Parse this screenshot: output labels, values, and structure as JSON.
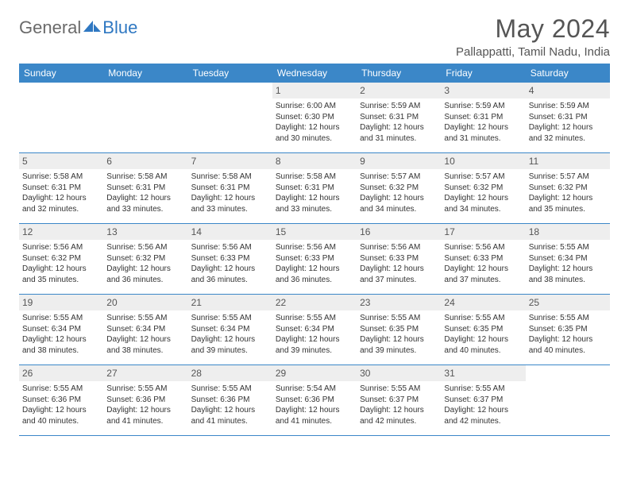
{
  "brand": {
    "part1": "General",
    "part2": "Blue"
  },
  "title": "May 2024",
  "location": "Pallappatti, Tamil Nadu, India",
  "colors": {
    "header_bar": "#3b87c8",
    "daynum_bg": "#eeeeee",
    "text": "#333333",
    "title_text": "#555555",
    "brand_blue": "#2f78c2",
    "brand_gray": "#6a6a6a",
    "row_divider": "#3b87c8",
    "background": "#ffffff"
  },
  "typography": {
    "title_fontsize": 32,
    "location_fontsize": 15,
    "weekday_fontsize": 12,
    "daynum_fontsize": 12,
    "body_fontsize": 10
  },
  "weekdays": [
    "Sunday",
    "Monday",
    "Tuesday",
    "Wednesday",
    "Thursday",
    "Friday",
    "Saturday"
  ],
  "weeks": [
    [
      {
        "n": "",
        "sr": "",
        "ss": "",
        "dl": ""
      },
      {
        "n": "",
        "sr": "",
        "ss": "",
        "dl": ""
      },
      {
        "n": "",
        "sr": "",
        "ss": "",
        "dl": ""
      },
      {
        "n": "1",
        "sr": "Sunrise: 6:00 AM",
        "ss": "Sunset: 6:30 PM",
        "dl": "Daylight: 12 hours and 30 minutes."
      },
      {
        "n": "2",
        "sr": "Sunrise: 5:59 AM",
        "ss": "Sunset: 6:31 PM",
        "dl": "Daylight: 12 hours and 31 minutes."
      },
      {
        "n": "3",
        "sr": "Sunrise: 5:59 AM",
        "ss": "Sunset: 6:31 PM",
        "dl": "Daylight: 12 hours and 31 minutes."
      },
      {
        "n": "4",
        "sr": "Sunrise: 5:59 AM",
        "ss": "Sunset: 6:31 PM",
        "dl": "Daylight: 12 hours and 32 minutes."
      }
    ],
    [
      {
        "n": "5",
        "sr": "Sunrise: 5:58 AM",
        "ss": "Sunset: 6:31 PM",
        "dl": "Daylight: 12 hours and 32 minutes."
      },
      {
        "n": "6",
        "sr": "Sunrise: 5:58 AM",
        "ss": "Sunset: 6:31 PM",
        "dl": "Daylight: 12 hours and 33 minutes."
      },
      {
        "n": "7",
        "sr": "Sunrise: 5:58 AM",
        "ss": "Sunset: 6:31 PM",
        "dl": "Daylight: 12 hours and 33 minutes."
      },
      {
        "n": "8",
        "sr": "Sunrise: 5:58 AM",
        "ss": "Sunset: 6:31 PM",
        "dl": "Daylight: 12 hours and 33 minutes."
      },
      {
        "n": "9",
        "sr": "Sunrise: 5:57 AM",
        "ss": "Sunset: 6:32 PM",
        "dl": "Daylight: 12 hours and 34 minutes."
      },
      {
        "n": "10",
        "sr": "Sunrise: 5:57 AM",
        "ss": "Sunset: 6:32 PM",
        "dl": "Daylight: 12 hours and 34 minutes."
      },
      {
        "n": "11",
        "sr": "Sunrise: 5:57 AM",
        "ss": "Sunset: 6:32 PM",
        "dl": "Daylight: 12 hours and 35 minutes."
      }
    ],
    [
      {
        "n": "12",
        "sr": "Sunrise: 5:56 AM",
        "ss": "Sunset: 6:32 PM",
        "dl": "Daylight: 12 hours and 35 minutes."
      },
      {
        "n": "13",
        "sr": "Sunrise: 5:56 AM",
        "ss": "Sunset: 6:32 PM",
        "dl": "Daylight: 12 hours and 36 minutes."
      },
      {
        "n": "14",
        "sr": "Sunrise: 5:56 AM",
        "ss": "Sunset: 6:33 PM",
        "dl": "Daylight: 12 hours and 36 minutes."
      },
      {
        "n": "15",
        "sr": "Sunrise: 5:56 AM",
        "ss": "Sunset: 6:33 PM",
        "dl": "Daylight: 12 hours and 36 minutes."
      },
      {
        "n": "16",
        "sr": "Sunrise: 5:56 AM",
        "ss": "Sunset: 6:33 PM",
        "dl": "Daylight: 12 hours and 37 minutes."
      },
      {
        "n": "17",
        "sr": "Sunrise: 5:56 AM",
        "ss": "Sunset: 6:33 PM",
        "dl": "Daylight: 12 hours and 37 minutes."
      },
      {
        "n": "18",
        "sr": "Sunrise: 5:55 AM",
        "ss": "Sunset: 6:34 PM",
        "dl": "Daylight: 12 hours and 38 minutes."
      }
    ],
    [
      {
        "n": "19",
        "sr": "Sunrise: 5:55 AM",
        "ss": "Sunset: 6:34 PM",
        "dl": "Daylight: 12 hours and 38 minutes."
      },
      {
        "n": "20",
        "sr": "Sunrise: 5:55 AM",
        "ss": "Sunset: 6:34 PM",
        "dl": "Daylight: 12 hours and 38 minutes."
      },
      {
        "n": "21",
        "sr": "Sunrise: 5:55 AM",
        "ss": "Sunset: 6:34 PM",
        "dl": "Daylight: 12 hours and 39 minutes."
      },
      {
        "n": "22",
        "sr": "Sunrise: 5:55 AM",
        "ss": "Sunset: 6:34 PM",
        "dl": "Daylight: 12 hours and 39 minutes."
      },
      {
        "n": "23",
        "sr": "Sunrise: 5:55 AM",
        "ss": "Sunset: 6:35 PM",
        "dl": "Daylight: 12 hours and 39 minutes."
      },
      {
        "n": "24",
        "sr": "Sunrise: 5:55 AM",
        "ss": "Sunset: 6:35 PM",
        "dl": "Daylight: 12 hours and 40 minutes."
      },
      {
        "n": "25",
        "sr": "Sunrise: 5:55 AM",
        "ss": "Sunset: 6:35 PM",
        "dl": "Daylight: 12 hours and 40 minutes."
      }
    ],
    [
      {
        "n": "26",
        "sr": "Sunrise: 5:55 AM",
        "ss": "Sunset: 6:36 PM",
        "dl": "Daylight: 12 hours and 40 minutes."
      },
      {
        "n": "27",
        "sr": "Sunrise: 5:55 AM",
        "ss": "Sunset: 6:36 PM",
        "dl": "Daylight: 12 hours and 41 minutes."
      },
      {
        "n": "28",
        "sr": "Sunrise: 5:55 AM",
        "ss": "Sunset: 6:36 PM",
        "dl": "Daylight: 12 hours and 41 minutes."
      },
      {
        "n": "29",
        "sr": "Sunrise: 5:54 AM",
        "ss": "Sunset: 6:36 PM",
        "dl": "Daylight: 12 hours and 41 minutes."
      },
      {
        "n": "30",
        "sr": "Sunrise: 5:55 AM",
        "ss": "Sunset: 6:37 PM",
        "dl": "Daylight: 12 hours and 42 minutes."
      },
      {
        "n": "31",
        "sr": "Sunrise: 5:55 AM",
        "ss": "Sunset: 6:37 PM",
        "dl": "Daylight: 12 hours and 42 minutes."
      },
      {
        "n": "",
        "sr": "",
        "ss": "",
        "dl": ""
      }
    ]
  ]
}
